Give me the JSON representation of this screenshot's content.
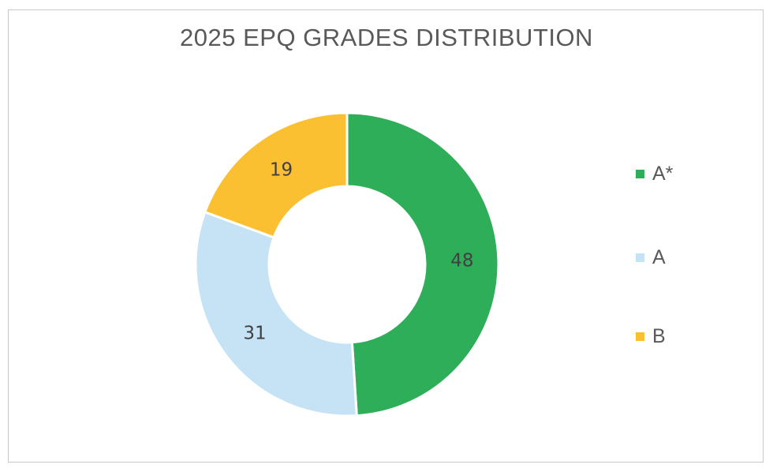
{
  "chart_data": {
    "type": "pie",
    "title": "2025 EPQ GRADES DISTRIBUTION",
    "categories": [
      "A*",
      "A",
      "B"
    ],
    "values": [
      48,
      31,
      19
    ],
    "colors": [
      "#2fae5a",
      "#c5e3f5",
      "#fbbf32"
    ],
    "hole": true,
    "legend_position": "right"
  }
}
